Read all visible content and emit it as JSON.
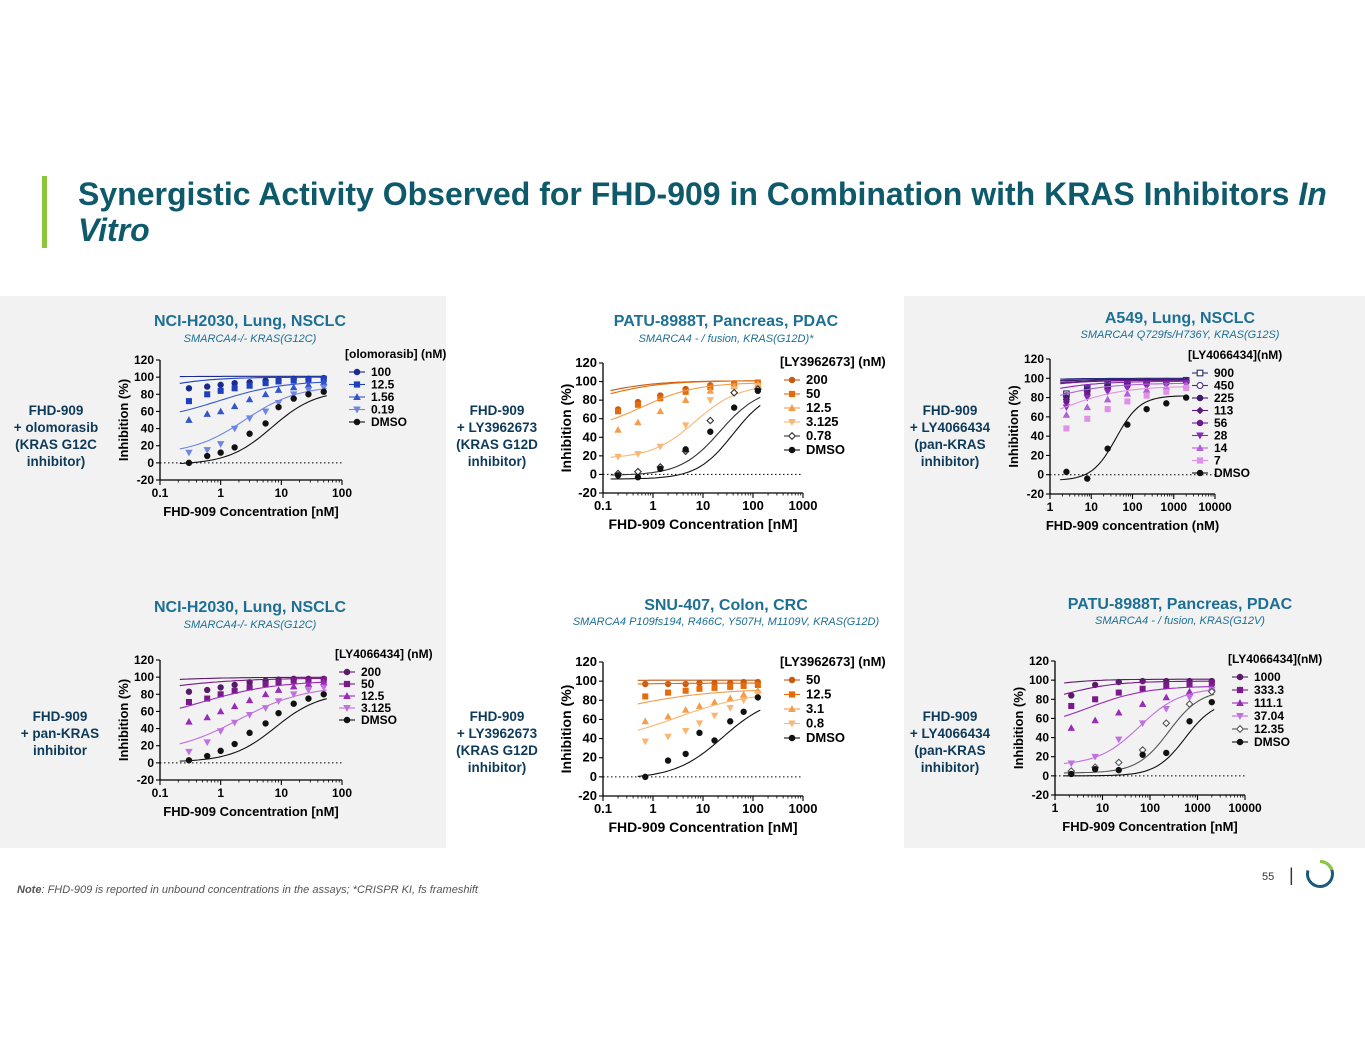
{
  "slide": {
    "title_main": "Synergistic Activity Observed for FHD-909 in Combination with KRAS Inhibitors ",
    "title_italic": "In Vitro",
    "note_label": "Note",
    "note_text": ": FHD-909 is reported in unbound concentrations in the assays; *CRISPR KI, fs frameshift",
    "page_number": "55",
    "colors": {
      "title": "#0e5a6b",
      "accent": "#8cc63f",
      "subtitle": "#1d6f94",
      "panel": "#f2f2f2"
    }
  },
  "side_labels": [
    {
      "lines": [
        "FHD-909",
        "+ olomorasib",
        "(KRAS G12C",
        "inhibitor)"
      ]
    },
    {
      "lines": [
        "FHD-909",
        "+ LY3962673",
        "(KRAS G12D",
        "inhibitor)"
      ]
    },
    {
      "lines": [
        "FHD-909",
        "+ LY4066434",
        "(pan-KRAS",
        "inhibitor)"
      ]
    },
    {
      "lines": [
        "FHD-909",
        "+ pan-KRAS",
        "inhibitor"
      ]
    },
    {
      "lines": [
        "FHD-909",
        "+ LY3962673",
        "(KRAS G12D",
        "inhibitor)"
      ]
    },
    {
      "lines": [
        "FHD-909",
        "+ LY4066434",
        "(pan-KRAS",
        "inhibitor)"
      ]
    }
  ],
  "chart_data": [
    {
      "type": "scatter",
      "title": "NCI-H2030, Lung, NSCLC",
      "subtitle": "SMARCA4-/- KRAS(G12C)",
      "xlabel": "FHD-909 Concentration [nM]",
      "ylabel": "Inhibition (%)",
      "xscale": "log",
      "xlim": [
        0.1,
        100
      ],
      "ylim": [
        -20,
        120
      ],
      "xticks": [
        "0.1",
        "1",
        "10",
        "100"
      ],
      "yticks": [
        "-20",
        "0",
        "20",
        "40",
        "60",
        "80",
        "100",
        "120"
      ],
      "legend_title": "[olomorasib] (nM)",
      "x": [
        0.3,
        0.6,
        1,
        1.7,
        3,
        5.5,
        9,
        16,
        28,
        50
      ],
      "series": [
        {
          "name": "100",
          "color": "#1a2a8c",
          "marker": "circle",
          "ic50": 0.005,
          "hill": 1.0,
          "values": [
            87,
            89,
            91,
            93,
            94,
            96,
            97,
            98,
            98,
            99
          ]
        },
        {
          "name": "12.5",
          "color": "#1f3fbf",
          "marker": "square",
          "ic50": 0.06,
          "hill": 0.9,
          "values": [
            72,
            80,
            84,
            87,
            90,
            93,
            95,
            96,
            97,
            98
          ]
        },
        {
          "name": "1.56",
          "color": "#3456cc",
          "marker": "triangle",
          "ic50": 0.9,
          "hill": 0.8,
          "values": [
            50,
            57,
            60,
            66,
            74,
            80,
            85,
            88,
            91,
            94
          ]
        },
        {
          "name": "0.19",
          "color": "#6f86e0",
          "marker": "triangle-down",
          "ic50": 2.5,
          "hill": 1.0,
          "values": [
            12,
            15,
            22,
            40,
            52,
            60,
            70,
            80,
            85,
            88
          ]
        },
        {
          "name": "DMSO",
          "color": "#111111",
          "marker": "circle",
          "ic50": 7,
          "hill": 1.2,
          "values": [
            0,
            8,
            12,
            18,
            34,
            46,
            65,
            75,
            80,
            83
          ]
        }
      ]
    },
    {
      "type": "scatter",
      "title": "PATU-8988T, Pancreas, PDAC",
      "subtitle": "SMARCA4 - / fusion, KRAS(G12D)*",
      "xlabel": "FHD-909 Concentration [nM]",
      "ylabel": "Inhibition (%)",
      "xscale": "log",
      "xlim": [
        0.1,
        1000
      ],
      "ylim": [
        -20,
        120
      ],
      "xticks": [
        "0.1",
        "1",
        "10",
        "100",
        "1000"
      ],
      "yticks": [
        "-20",
        "0",
        "20",
        "40",
        "60",
        "80",
        "100",
        "120"
      ],
      "legend_title": "[LY3962673] (nM)",
      "x": [
        0.2,
        0.5,
        1.4,
        4.5,
        14,
        42,
        125
      ],
      "series": [
        {
          "name": "200",
          "color": "#c65a12",
          "marker": "circle",
          "ic50": 0.05,
          "hill": 0.7,
          "values": [
            70,
            78,
            85,
            92,
            96,
            98,
            99
          ]
        },
        {
          "name": "50",
          "color": "#e46c0a",
          "marker": "square",
          "ic50": 0.08,
          "hill": 0.7,
          "values": [
            68,
            75,
            82,
            89,
            94,
            97,
            99
          ]
        },
        {
          "name": "12.5",
          "color": "#f39c4a",
          "marker": "triangle",
          "ic50": 0.6,
          "hill": 0.8,
          "values": [
            48,
            56,
            68,
            80,
            90,
            95,
            97
          ]
        },
        {
          "name": "3.125",
          "color": "#f8b672",
          "marker": "triangle-down",
          "ic50": 7,
          "hill": 1.0,
          "values": [
            19,
            22,
            30,
            53,
            80,
            92,
            95
          ]
        },
        {
          "name": "0.78",
          "color": "#333333",
          "marker": "diamond-open",
          "ic50": 22,
          "hill": 1.1,
          "values": [
            1,
            3,
            8,
            25,
            58,
            88,
            92
          ]
        },
        {
          "name": "DMSO",
          "color": "#111111",
          "marker": "circle",
          "ic50": 40,
          "hill": 1.2,
          "values": [
            -1,
            -3,
            6,
            27,
            46,
            72,
            90
          ]
        }
      ]
    },
    {
      "type": "scatter",
      "title": "A549, Lung, NSCLC",
      "subtitle": "SMARCA4 Q729fs/H736Y, KRAS(G12S)",
      "xlabel": "FHD-909 concentration (nM)",
      "ylabel": "Inhibition (%)",
      "xscale": "log",
      "xlim": [
        1,
        10000
      ],
      "ylim": [
        -20,
        120
      ],
      "xticks": [
        "1",
        "10",
        "100",
        "1000",
        "10000"
      ],
      "yticks": [
        "-20",
        "0",
        "20",
        "40",
        "60",
        "80",
        "100",
        "120"
      ],
      "legend_title": "[LY4066434](nM)",
      "x": [
        2.5,
        8,
        25,
        75,
        220,
        660,
        2000
      ],
      "series": [
        {
          "name": "900",
          "color": "#2a2a7a",
          "marker": "square-open",
          "ic50": 0.01,
          "hill": 0.6,
          "values": [
            84,
            90,
            94,
            96,
            97,
            97,
            98
          ]
        },
        {
          "name": "450",
          "color": "#4a2a8a",
          "marker": "circle-open",
          "ic50": 0.02,
          "hill": 0.6,
          "values": [
            82,
            89,
            93,
            95,
            96,
            97,
            97
          ]
        },
        {
          "name": "225",
          "color": "#3a1a6a",
          "marker": "circle",
          "ic50": 0.04,
          "hill": 0.6,
          "values": [
            80,
            88,
            92,
            94,
            95,
            96,
            97
          ]
        },
        {
          "name": "113",
          "color": "#5a1a7a",
          "marker": "diamond",
          "ic50": 0.06,
          "hill": 0.6,
          "values": [
            78,
            86,
            90,
            93,
            95,
            96,
            96
          ]
        },
        {
          "name": "56",
          "color": "#6a1a8a",
          "marker": "circle",
          "ic50": 0.1,
          "hill": 0.6,
          "values": [
            76,
            84,
            89,
            92,
            94,
            95,
            96
          ]
        },
        {
          "name": "28",
          "color": "#8a2ab8",
          "marker": "triangle-down",
          "ic50": 0.3,
          "hill": 0.6,
          "values": [
            70,
            80,
            86,
            90,
            92,
            94,
            95
          ]
        },
        {
          "name": "14",
          "color": "#b060d8",
          "marker": "triangle",
          "ic50": 0.7,
          "hill": 0.6,
          "values": [
            62,
            70,
            78,
            84,
            88,
            91,
            93
          ]
        },
        {
          "name": "7",
          "color": "#e090e8",
          "marker": "square",
          "ic50": 2,
          "hill": 0.6,
          "values": [
            48,
            58,
            68,
            76,
            82,
            86,
            90
          ]
        },
        {
          "name": "DMSO",
          "color": "#111111",
          "marker": "circle",
          "ic50": 40,
          "hill": 1.5,
          "values": [
            3,
            -4,
            27,
            52,
            68,
            74,
            80
          ]
        }
      ]
    },
    {
      "type": "scatter",
      "title": "NCI-H2030, Lung, NSCLC",
      "subtitle": "SMARCA4-/- KRAS(G12C)",
      "xlabel": "FHD-909 Concentration [nM]",
      "ylabel": "Inhibition (%)",
      "xscale": "log",
      "xlim": [
        0.1,
        100
      ],
      "ylim": [
        -20,
        120
      ],
      "xticks": [
        "0.1",
        "1",
        "10",
        "100"
      ],
      "yticks": [
        "-20",
        "0",
        "20",
        "40",
        "60",
        "80",
        "100",
        "120"
      ],
      "legend_title": "[LY4066434] (nM)",
      "x": [
        0.3,
        0.6,
        1,
        1.7,
        3,
        5.5,
        9,
        16,
        28,
        50
      ],
      "series": [
        {
          "name": "200",
          "color": "#5a1a6a",
          "marker": "circle",
          "ic50": 0.01,
          "hill": 0.6,
          "values": [
            83,
            85,
            88,
            91,
            94,
            96,
            97,
            98,
            98,
            98
          ]
        },
        {
          "name": "50",
          "color": "#7a1a8a",
          "marker": "square",
          "ic50": 0.05,
          "hill": 0.6,
          "values": [
            71,
            75,
            80,
            84,
            88,
            92,
            94,
            96,
            96,
            97
          ]
        },
        {
          "name": "12.5",
          "color": "#9a2ab8",
          "marker": "triangle",
          "ic50": 0.5,
          "hill": 0.7,
          "values": [
            48,
            53,
            60,
            66,
            73,
            80,
            85,
            89,
            92,
            94
          ]
        },
        {
          "name": "3.125",
          "color": "#c070e0",
          "marker": "triangle-down",
          "ic50": 2,
          "hill": 0.8,
          "values": [
            13,
            24,
            37,
            47,
            56,
            64,
            72,
            80,
            85,
            88
          ]
        },
        {
          "name": "DMSO",
          "color": "#111111",
          "marker": "circle",
          "ic50": 8,
          "hill": 1.2,
          "values": [
            3,
            8,
            14,
            22,
            35,
            46,
            58,
            69,
            75,
            80
          ]
        }
      ]
    },
    {
      "type": "scatter",
      "title": "SNU-407, Colon, CRC",
      "subtitle": "SMARCA4 P109fs194, R466C, Y507H, M1109V, KRAS(G12D)",
      "xlabel": "FHD-909 Concentration [nM]",
      "ylabel": "Inhibition (%)",
      "xscale": "log",
      "xlim": [
        0.1,
        1000
      ],
      "ylim": [
        -20,
        120
      ],
      "xticks": [
        "0.1",
        "1",
        "10",
        "100",
        "1000"
      ],
      "yticks": [
        "-20",
        "0",
        "20",
        "40",
        "60",
        "80",
        "100",
        "120"
      ],
      "legend_title": "[LY3962673] (nM)",
      "x": [
        0.7,
        2,
        4.5,
        8.5,
        17,
        35,
        65,
        125
      ],
      "series": [
        {
          "name": "50",
          "color": "#c65a12",
          "marker": "circle",
          "ic50": 0.0001,
          "hill": 0.5,
          "values": [
            97,
            97,
            97,
            98,
            98,
            98,
            99,
            99
          ]
        },
        {
          "name": "12.5",
          "color": "#e46c0a",
          "marker": "square",
          "ic50": 0.002,
          "hill": 0.5,
          "values": [
            84,
            88,
            90,
            92,
            93,
            94,
            95,
            96
          ]
        },
        {
          "name": "3.1",
          "color": "#f39c4a",
          "marker": "triangle",
          "ic50": 0.3,
          "hill": 0.5,
          "values": [
            58,
            63,
            70,
            74,
            78,
            82,
            86,
            90
          ]
        },
        {
          "name": "0.8",
          "color": "#f8b672",
          "marker": "triangle-down",
          "ic50": 3,
          "hill": 0.6,
          "values": [
            37,
            42,
            48,
            56,
            64,
            72,
            80,
            87
          ]
        },
        {
          "name": "DMSO",
          "color": "#111111",
          "marker": "circle",
          "ic50": 25,
          "hill": 0.9,
          "values": [
            0,
            17,
            24,
            46,
            38,
            58,
            68,
            83
          ]
        }
      ]
    },
    {
      "type": "scatter",
      "title": "PATU-8988T, Pancreas, PDAC",
      "subtitle": "SMARCA4 - / fusion, KRAS(G12V)",
      "xlabel": "FHD-909 Concentration [nM]",
      "ylabel": "Inhibition (%)",
      "xscale": "log",
      "xlim": [
        1,
        10000
      ],
      "ylim": [
        -20,
        120
      ],
      "xticks": [
        "1",
        "10",
        "100",
        "1000",
        "10000"
      ],
      "yticks": [
        "-20",
        "0",
        "20",
        "40",
        "60",
        "80",
        "100",
        "120"
      ],
      "legend_title": "[LY4066434](nM)",
      "x": [
        2.2,
        7,
        22,
        70,
        220,
        680,
        2000
      ],
      "series": [
        {
          "name": "1000",
          "color": "#5a1a6a",
          "marker": "circle",
          "ic50": 0.3,
          "hill": 0.8,
          "values": [
            84,
            95,
            98,
            99,
            99,
            99,
            99
          ]
        },
        {
          "name": "333.3",
          "color": "#7a1a8a",
          "marker": "square",
          "ic50": 1.5,
          "hill": 0.8,
          "values": [
            73,
            80,
            87,
            91,
            94,
            96,
            97
          ]
        },
        {
          "name": "111.1",
          "color": "#9a2ab8",
          "marker": "triangle",
          "ic50": 5,
          "hill": 0.7,
          "values": [
            50,
            58,
            66,
            75,
            82,
            88,
            92
          ]
        },
        {
          "name": "37.04",
          "color": "#c070e0",
          "marker": "triangle-down",
          "ic50": 60,
          "hill": 1.0,
          "values": [
            13,
            20,
            38,
            55,
            70,
            82,
            90
          ]
        },
        {
          "name": "12.35",
          "color": "#555555",
          "marker": "diamond-open",
          "ic50": 250,
          "hill": 1.3,
          "values": [
            5,
            9,
            14,
            27,
            55,
            75,
            88
          ]
        },
        {
          "name": "DMSO",
          "color": "#111111",
          "marker": "circle",
          "ic50": 550,
          "hill": 1.4,
          "values": [
            2,
            7,
            6,
            22,
            24,
            57,
            77
          ]
        }
      ]
    }
  ]
}
